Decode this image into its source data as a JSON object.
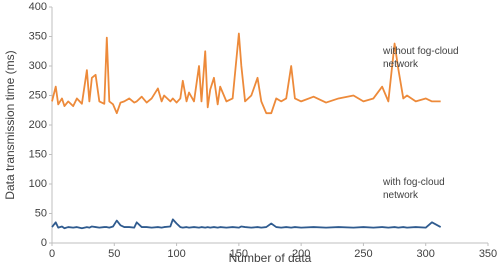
{
  "chart_data": {
    "type": "line",
    "x_label": "Number of data",
    "y_label": "Data transmission time (ms)",
    "x": [
      0,
      3,
      5,
      8,
      10,
      13,
      17,
      20,
      24,
      28,
      30,
      32,
      35,
      38,
      42,
      44,
      46,
      49,
      52,
      55,
      58,
      62,
      66,
      68,
      72,
      76,
      80,
      85,
      88,
      90,
      95,
      97,
      100,
      103,
      105,
      108,
      110,
      114,
      118,
      120,
      123,
      125,
      127,
      130,
      133,
      135,
      140,
      145,
      150,
      152,
      155,
      160,
      165,
      168,
      172,
      176,
      180,
      184,
      188,
      192,
      195,
      200,
      210,
      220,
      230,
      242,
      250,
      258,
      265,
      270,
      275,
      278,
      282,
      285,
      292,
      300,
      305,
      312
    ],
    "series": [
      {
        "name": "without fog-cloud network",
        "color": "#ed8a3a",
        "values": [
          240,
          265,
          235,
          245,
          232,
          240,
          232,
          245,
          236,
          293,
          240,
          280,
          285,
          240,
          236,
          348,
          240,
          235,
          220,
          238,
          240,
          245,
          238,
          240,
          248,
          238,
          245,
          262,
          240,
          250,
          240,
          245,
          238,
          245,
          275,
          240,
          255,
          240,
          300,
          240,
          325,
          230,
          260,
          280,
          235,
          265,
          240,
          245,
          355,
          300,
          240,
          250,
          280,
          240,
          220,
          220,
          245,
          240,
          245,
          300,
          245,
          240,
          248,
          238,
          245,
          250,
          240,
          245,
          265,
          240,
          338,
          295,
          245,
          250,
          240,
          245,
          240,
          240
        ]
      },
      {
        "name": "with fog-cloud network",
        "color": "#2f5b8f",
        "values": [
          27,
          35,
          26,
          28,
          25,
          27,
          26,
          27,
          25,
          27,
          26,
          28,
          27,
          26,
          27,
          27,
          26,
          28,
          38,
          30,
          27,
          27,
          26,
          35,
          27,
          27,
          26,
          27,
          26,
          27,
          28,
          40,
          33,
          27,
          26,
          27,
          26,
          27,
          26,
          27,
          26,
          27,
          26,
          27,
          26,
          27,
          26,
          27,
          26,
          28,
          27,
          26,
          27,
          26,
          27,
          33,
          27,
          26,
          27,
          26,
          27,
          26,
          27,
          26,
          27,
          26,
          27,
          26,
          27,
          26,
          27,
          26,
          27,
          26,
          27,
          26,
          35,
          27
        ]
      }
    ],
    "xlim": [
      0,
      350
    ],
    "xticks": [
      0,
      50,
      100,
      150,
      200,
      250,
      300,
      350
    ],
    "ylim": [
      0,
      400
    ],
    "yticks": [
      0,
      50,
      100,
      150,
      200,
      250,
      300,
      350,
      400
    ],
    "grid": false
  }
}
